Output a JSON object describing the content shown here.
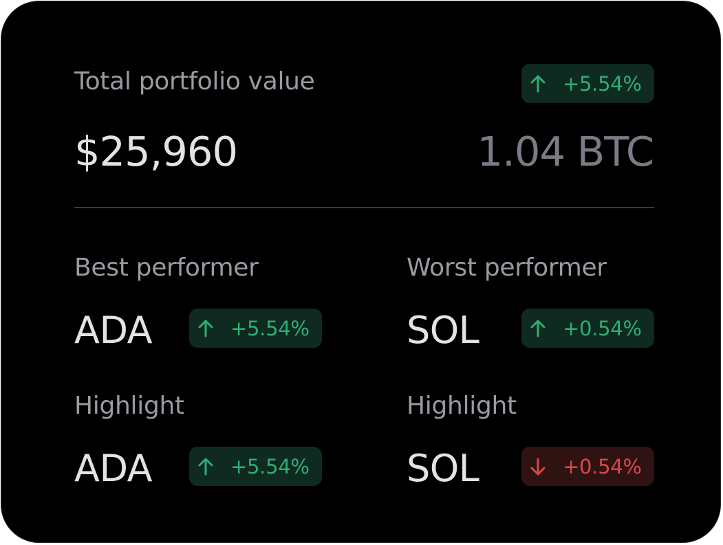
{
  "portfolio": {
    "label": "Total portfolio value",
    "change": "+5.54%",
    "value": "$25,960",
    "btc_value": "1.04 BTC"
  },
  "best": {
    "label": "Best performer",
    "ticker": "ADA",
    "change": "+5.54%"
  },
  "worst": {
    "label": "Worst performer",
    "ticker": "SOL",
    "change": "+0.54%"
  },
  "highlight_left": {
    "label": "Highlight",
    "ticker": "ADA",
    "change": "+5.54%"
  },
  "highlight_right": {
    "label": "Highlight",
    "ticker": "SOL",
    "change": "+0.54%"
  },
  "colors": {
    "background": "#000000",
    "positive": "#2fae73",
    "positive_bg": "#0f2a20",
    "negative": "#d94848",
    "negative_bg": "#2f1212"
  },
  "icons": {
    "up": "arrow-up-icon",
    "down": "arrow-down-icon"
  }
}
